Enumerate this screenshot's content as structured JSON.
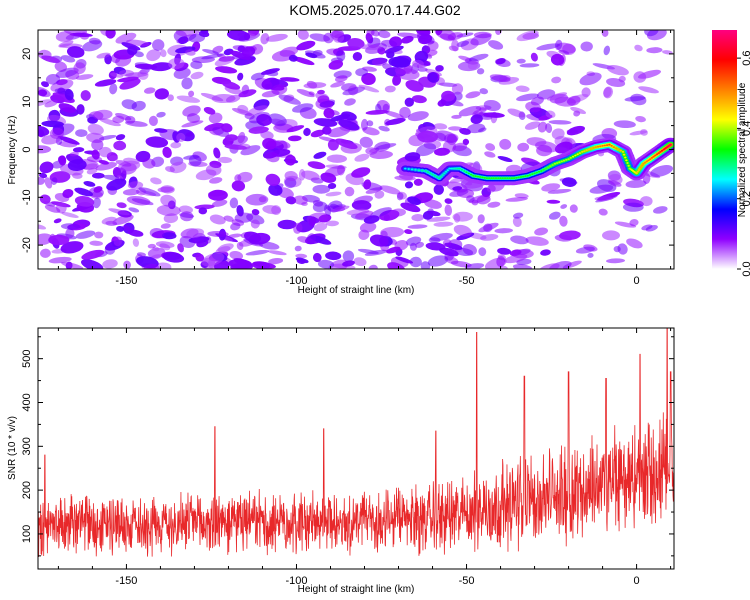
{
  "title": "KOM5.2025.070.17.44.G02",
  "chart_data": [
    {
      "type": "heatmap",
      "xlabel": "Height of straight line (km)",
      "ylabel": "Frequency (Hz)",
      "xlim": [
        -176,
        11
      ],
      "ylim": [
        -25,
        25
      ],
      "xticks": [
        -150,
        -100,
        -50,
        0
      ],
      "yticks": [
        -20,
        -10,
        0,
        10,
        20
      ],
      "xtick_labels": [
        "-150",
        "-100",
        "-50",
        "0"
      ],
      "ytick_labels": [
        "-20",
        "-10",
        "0",
        "10",
        "20"
      ],
      "colorbar": {
        "label": "Normalized spectral amplitude",
        "range": [
          0,
          0.68
        ],
        "ticks": [
          0.0,
          0.2,
          0.4,
          0.6
        ],
        "tick_labels": [
          "0.0",
          "0.2",
          "0.4",
          "0.6"
        ],
        "colors": [
          "#ffffff",
          "#8f00ff",
          "#0000ff",
          "#00ffff",
          "#00ff00",
          "#ffff00",
          "#ff8000",
          "#ff0000",
          "#ff0080"
        ]
      },
      "signal_track": {
        "x": [
          -68,
          -62,
          -58,
          -55,
          -52,
          -48,
          -44,
          -40,
          -36,
          -32,
          -28,
          -24,
          -20,
          -16,
          -12,
          -8,
          -4,
          -2,
          0,
          2,
          5,
          8,
          10
        ],
        "y": [
          -4,
          -4.5,
          -6,
          -4,
          -4,
          -5.5,
          -6,
          -6,
          -6,
          -5.5,
          -4.5,
          -3,
          -2,
          -0.5,
          0.5,
          1,
          -0.5,
          -4,
          -5,
          -3,
          -1.5,
          0,
          1
        ],
        "amplitude": [
          0.25,
          0.3,
          0.3,
          0.25,
          0.3,
          0.35,
          0.35,
          0.35,
          0.35,
          0.35,
          0.35,
          0.4,
          0.4,
          0.45,
          0.5,
          0.55,
          0.45,
          0.4,
          0.45,
          0.5,
          0.55,
          0.6,
          0.65
        ]
      },
      "grid": false
    },
    {
      "type": "line",
      "xlabel": "Height of straight line (km)",
      "ylabel": "SNR (10 * v/v)",
      "xlim": [
        -176,
        11
      ],
      "ylim": [
        20,
        570
      ],
      "xticks": [
        -150,
        -100,
        -50,
        0
      ],
      "yticks": [
        100,
        200,
        300,
        400,
        500
      ],
      "xtick_labels": [
        "-150",
        "-100",
        "-50",
        "0"
      ],
      "ytick_labels": [
        "100",
        "200",
        "300",
        "400",
        "500"
      ],
      "series": [
        {
          "color": "#e8282a",
          "x_start": -176,
          "x_end": 11,
          "baseline_x": [
            -176,
            -120,
            -75,
            -55,
            -40,
            -25,
            -10,
            0,
            11
          ],
          "baseline_mean": [
            120,
            125,
            130,
            140,
            165,
            185,
            215,
            230,
            240
          ],
          "baseline_spread": [
            70,
            70,
            75,
            85,
            100,
            110,
            120,
            130,
            140
          ],
          "peaks": [
            {
              "x": -174,
              "y": 280
            },
            {
              "x": -124,
              "y": 345
            },
            {
              "x": -92,
              "y": 340
            },
            {
              "x": -59,
              "y": 335
            },
            {
              "x": -47,
              "y": 560
            },
            {
              "x": -33,
              "y": 460
            },
            {
              "x": -20,
              "y": 470
            },
            {
              "x": -9,
              "y": 455
            },
            {
              "x": 1,
              "y": 510
            },
            {
              "x": 9,
              "y": 568
            },
            {
              "x": 10,
              "y": 470
            }
          ]
        }
      ],
      "grid": false
    }
  ]
}
